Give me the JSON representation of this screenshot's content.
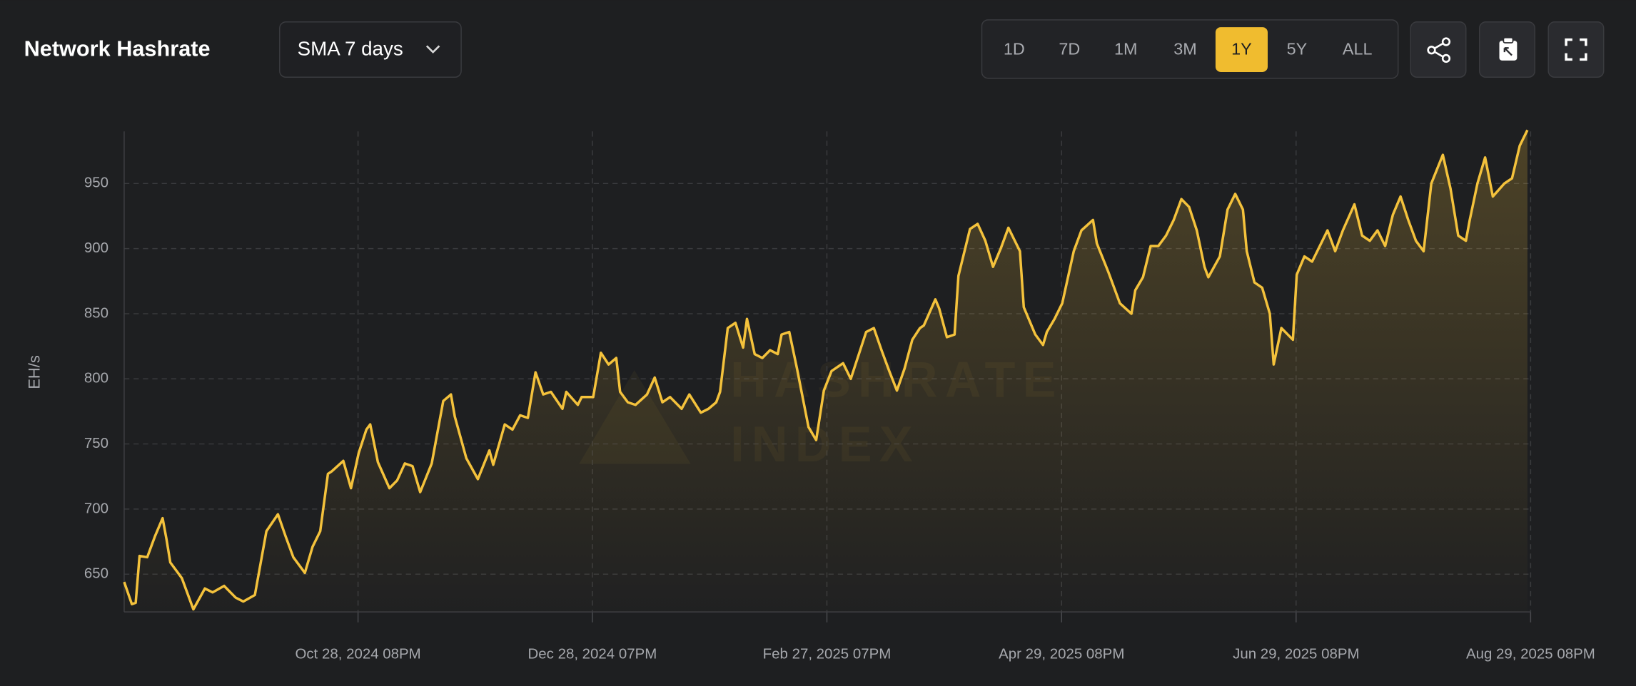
{
  "header": {
    "title": "Network Hashrate",
    "smoothing": "SMA 7 days",
    "ranges": [
      "1D",
      "7D",
      "1M",
      "3M",
      "1Y",
      "5Y",
      "ALL"
    ],
    "active_range": "1Y"
  },
  "chart_data": {
    "type": "area",
    "y_label": "EH/s",
    "watermark": [
      "HASHRATE",
      "INDEX"
    ],
    "color": "#f4c23c",
    "grid": true,
    "xlim": [
      "2024-08-29",
      "2025-08-29T20:00"
    ],
    "xticks": [
      {
        "value": "2024-10-28T20:00",
        "label": "Oct 28, 2024 08PM"
      },
      {
        "value": "2024-12-28T19:00",
        "label": "Dec 28, 2024 07PM"
      },
      {
        "value": "2025-02-27T19:00",
        "label": "Feb 27, 2025 07PM"
      },
      {
        "value": "2025-04-29T20:00",
        "label": "Apr 29, 2025 08PM"
      },
      {
        "value": "2025-06-29T20:00",
        "label": "Jun 29, 2025 08PM"
      },
      {
        "value": "2025-08-29T20:00",
        "label": "Aug 29, 2025 08PM"
      }
    ],
    "ylim": [
      621,
      990
    ],
    "yticks": [
      650,
      700,
      750,
      800,
      850,
      900,
      950
    ],
    "series": [
      {
        "name": "Network Hashrate",
        "color": "#f4c23c",
        "x": [
          "2024-08-29",
          "2024-08-31",
          "2024-09-01",
          "2024-09-02",
          "2024-09-04",
          "2024-09-06",
          "2024-09-08",
          "2024-09-09",
          "2024-09-10",
          "2024-09-13",
          "2024-09-16",
          "2024-09-19",
          "2024-09-21",
          "2024-09-24",
          "2024-09-27",
          "2024-09-29",
          "2024-10-02",
          "2024-10-05",
          "2024-10-08",
          "2024-10-10",
          "2024-10-12",
          "2024-10-15",
          "2024-10-17",
          "2024-10-19",
          "2024-10-21",
          "2024-10-22",
          "2024-10-25",
          "2024-10-27",
          "2024-10-29",
          "2024-10-31",
          "2024-11-01",
          "2024-11-03",
          "2024-11-06",
          "2024-11-08",
          "2024-11-10",
          "2024-11-12",
          "2024-11-14",
          "2024-11-17",
          "2024-11-20",
          "2024-11-22",
          "2024-11-23",
          "2024-11-26",
          "2024-11-29",
          "2024-12-02",
          "2024-12-03",
          "2024-12-06",
          "2024-12-08",
          "2024-12-10",
          "2024-12-12",
          "2024-12-14",
          "2024-12-16",
          "2024-12-18",
          "2024-12-21",
          "2024-12-22",
          "2024-12-25",
          "2024-12-26",
          "2024-12-29",
          "2024-12-31",
          "2025-01-02",
          "2025-01-04",
          "2025-01-05",
          "2025-01-07",
          "2025-01-09",
          "2025-01-12",
          "2025-01-14",
          "2025-01-16",
          "2025-01-18",
          "2025-01-21",
          "2025-01-23",
          "2025-01-26",
          "2025-01-28",
          "2025-01-30",
          "2025-01-31",
          "2025-02-02",
          "2025-02-04",
          "2025-02-06",
          "2025-02-07",
          "2025-02-09",
          "2025-02-11",
          "2025-02-13",
          "2025-02-15",
          "2025-02-16",
          "2025-02-18",
          "2025-02-20",
          "2025-02-23",
          "2025-02-25",
          "2025-02-27",
          "2025-03-01",
          "2025-03-04",
          "2025-03-06",
          "2025-03-08",
          "2025-03-10",
          "2025-03-12",
          "2025-03-14",
          "2025-03-16",
          "2025-03-18",
          "2025-03-20",
          "2025-03-22",
          "2025-03-24",
          "2025-03-25",
          "2025-03-28",
          "2025-03-29",
          "2025-03-31",
          "2025-04-02",
          "2025-04-03",
          "2025-04-06",
          "2025-04-08",
          "2025-04-10",
          "2025-04-12",
          "2025-04-14",
          "2025-04-16",
          "2025-04-19",
          "2025-04-20",
          "2025-04-23",
          "2025-04-25",
          "2025-04-26",
          "2025-04-28",
          "2025-04-30",
          "2025-05-03",
          "2025-05-05",
          "2025-05-08",
          "2025-05-09",
          "2025-05-12",
          "2025-05-15",
          "2025-05-18",
          "2025-05-19",
          "2025-05-21",
          "2025-05-23",
          "2025-05-25",
          "2025-05-27",
          "2025-05-29",
          "2025-05-31",
          "2025-06-02",
          "2025-06-04",
          "2025-06-06",
          "2025-06-07",
          "2025-06-10",
          "2025-06-12",
          "2025-06-14",
          "2025-06-16",
          "2025-06-17",
          "2025-06-19",
          "2025-06-21",
          "2025-06-23",
          "2025-06-24",
          "2025-06-26",
          "2025-06-29",
          "2025-06-30",
          "2025-07-02",
          "2025-07-04",
          "2025-07-06",
          "2025-07-08",
          "2025-07-10",
          "2025-07-12",
          "2025-07-15",
          "2025-07-17",
          "2025-07-19",
          "2025-07-21",
          "2025-07-23",
          "2025-07-25",
          "2025-07-27",
          "2025-07-29",
          "2025-07-31",
          "2025-08-02",
          "2025-08-04",
          "2025-08-07",
          "2025-08-09",
          "2025-08-11",
          "2025-08-13",
          "2025-08-14",
          "2025-08-16",
          "2025-08-18",
          "2025-08-20",
          "2025-08-23",
          "2025-08-25",
          "2025-08-27",
          "2025-08-29"
        ],
        "values": [
          644,
          627,
          628,
          664,
          663,
          679,
          693,
          677,
          659,
          647,
          623,
          639,
          636,
          641,
          632,
          629,
          634,
          683,
          696,
          679,
          663,
          651,
          671,
          683,
          727,
          729,
          737,
          716,
          743,
          761,
          765,
          736,
          716,
          722,
          735,
          733,
          713,
          735,
          783,
          788,
          771,
          739,
          723,
          745,
          734,
          765,
          761,
          772,
          770,
          805,
          788,
          790,
          777,
          790,
          780,
          786,
          786,
          820,
          811,
          816,
          790,
          782,
          780,
          788,
          801,
          782,
          786,
          777,
          788,
          774,
          777,
          782,
          790,
          839,
          843,
          824,
          846,
          819,
          816,
          822,
          819,
          834,
          836,
          808,
          763,
          753,
          791,
          806,
          812,
          800,
          818,
          836,
          839,
          822,
          806,
          791,
          808,
          830,
          839,
          841,
          861,
          854,
          832,
          834,
          879,
          915,
          919,
          906,
          886,
          900,
          916,
          898,
          855,
          834,
          826,
          836,
          846,
          858,
          898,
          914,
          922,
          904,
          882,
          858,
          850,
          868,
          878,
          902,
          902,
          910,
          922,
          938,
          932,
          914,
          886,
          878,
          894,
          930,
          942,
          930,
          898,
          874,
          870,
          850,
          811,
          839,
          830,
          880,
          894,
          890,
          902,
          914,
          898,
          914,
          934,
          910,
          906,
          914,
          902,
          926,
          940,
          922,
          906,
          898,
          950,
          972,
          946,
          910,
          906,
          922,
          950,
          970,
          940,
          950,
          954,
          979,
          991
        ]
      }
    ]
  }
}
